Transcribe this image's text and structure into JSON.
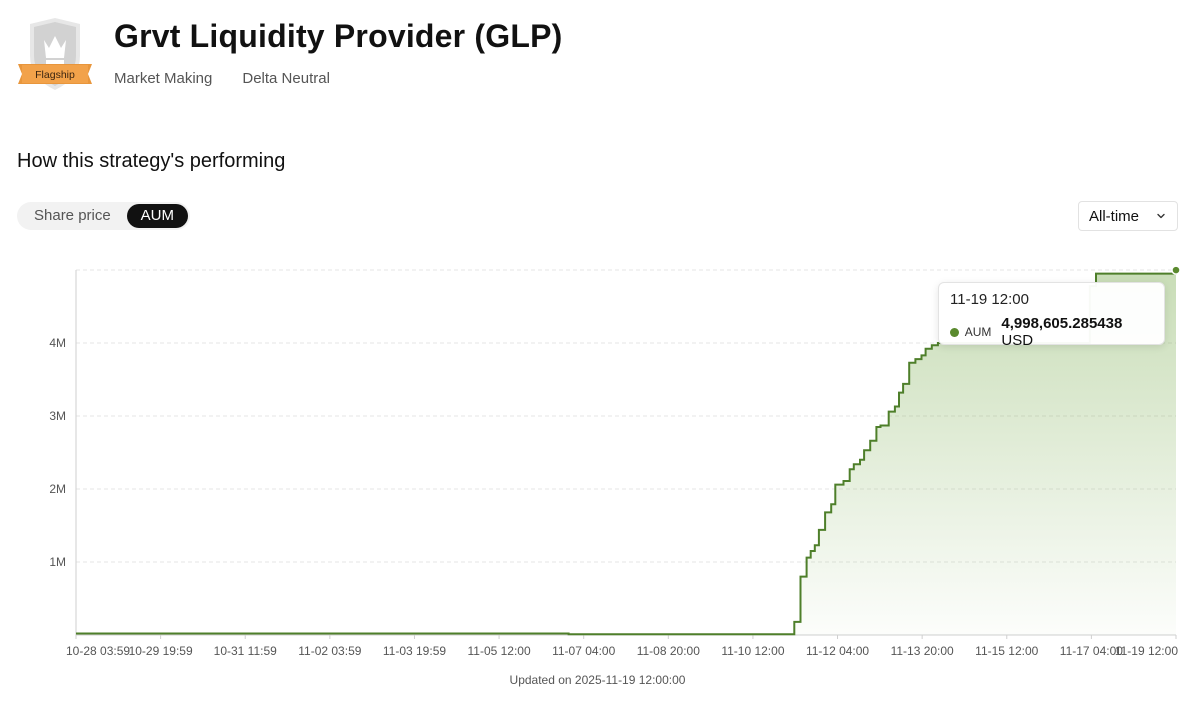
{
  "header": {
    "title": "Grvt Liquidity Provider (GLP)",
    "badge": "Flagship",
    "tags": [
      "Market Making",
      "Delta Neutral"
    ]
  },
  "section": {
    "title": "How this strategy's performing"
  },
  "toggle": {
    "options": [
      "Share price",
      "AUM"
    ],
    "active": "AUM"
  },
  "range": {
    "label": "All-time"
  },
  "tooltip": {
    "time": "11-19 12:00",
    "series": "AUM",
    "value": "4,998,605.285438",
    "unit": "USD"
  },
  "footer": {
    "updated": "Updated on 2025-11-19 12:00:00"
  },
  "colors": {
    "line": "#4e7f2a",
    "fill": "#6fa540",
    "dot": "#5a8a2e",
    "grid": "#e6e6e6"
  },
  "chart_data": {
    "type": "area",
    "step": true,
    "series_name": "AUM",
    "unit": "USD",
    "ylim": [
      0,
      5000000
    ],
    "yticks": [
      1000000,
      2000000,
      3000000,
      4000000
    ],
    "ytick_labels": [
      "1M",
      "2M",
      "3M",
      "4M"
    ],
    "x_range": [
      "10-28 03:59",
      "11-19 12:00"
    ],
    "xtick_labels": [
      "10-28 03:59",
      "10-29 19:59",
      "10-31 11:59",
      "11-02 03:59",
      "11-03 19:59",
      "11-05 12:00",
      "11-07 04:00",
      "11-08 20:00",
      "11-10 12:00",
      "11-12 04:00",
      "11-13 20:00",
      "11-15 12:00",
      "11-17 04:00",
      "11-19 12:00"
    ],
    "grid": "horizontal-dashed",
    "points": [
      {
        "x": "10-28 03:59",
        "y": 20000
      },
      {
        "x": "11-07 04:00",
        "y": 10000
      },
      {
        "x": "11-11 16:00",
        "y": 10000
      },
      {
        "x": "11-11 18:00",
        "y": 180000
      },
      {
        "x": "11-11 21:00",
        "y": 800000
      },
      {
        "x": "11-12 00:00",
        "y": 1060000
      },
      {
        "x": "11-12 02:00",
        "y": 1150000
      },
      {
        "x": "11-12 04:00",
        "y": 1230000
      },
      {
        "x": "11-12 06:00",
        "y": 1440000
      },
      {
        "x": "11-12 09:00",
        "y": 1680000
      },
      {
        "x": "11-12 12:00",
        "y": 1790000
      },
      {
        "x": "11-12 14:00",
        "y": 2060000
      },
      {
        "x": "11-12 18:00",
        "y": 2110000
      },
      {
        "x": "11-12 21:00",
        "y": 2270000
      },
      {
        "x": "11-12 23:00",
        "y": 2340000
      },
      {
        "x": "11-13 02:00",
        "y": 2400000
      },
      {
        "x": "11-13 04:00",
        "y": 2530000
      },
      {
        "x": "11-13 07:00",
        "y": 2660000
      },
      {
        "x": "11-13 10:00",
        "y": 2850000
      },
      {
        "x": "11-13 12:00",
        "y": 2870000
      },
      {
        "x": "11-13 16:00",
        "y": 3060000
      },
      {
        "x": "11-13 19:00",
        "y": 3130000
      },
      {
        "x": "11-13 21:00",
        "y": 3320000
      },
      {
        "x": "11-13 23:00",
        "y": 3440000
      },
      {
        "x": "11-14 02:00",
        "y": 3730000
      },
      {
        "x": "11-14 05:00",
        "y": 3780000
      },
      {
        "x": "11-14 08:00",
        "y": 3830000
      },
      {
        "x": "11-14 10:00",
        "y": 3920000
      },
      {
        "x": "11-14 13:00",
        "y": 3970000
      },
      {
        "x": "11-14 16:00",
        "y": 4000000
      },
      {
        "x": "11-17 18:00",
        "y": 4780000
      },
      {
        "x": "11-17 21:00",
        "y": 4950000
      },
      {
        "x": "11-19 12:00",
        "y": 4998605.285438
      }
    ]
  }
}
